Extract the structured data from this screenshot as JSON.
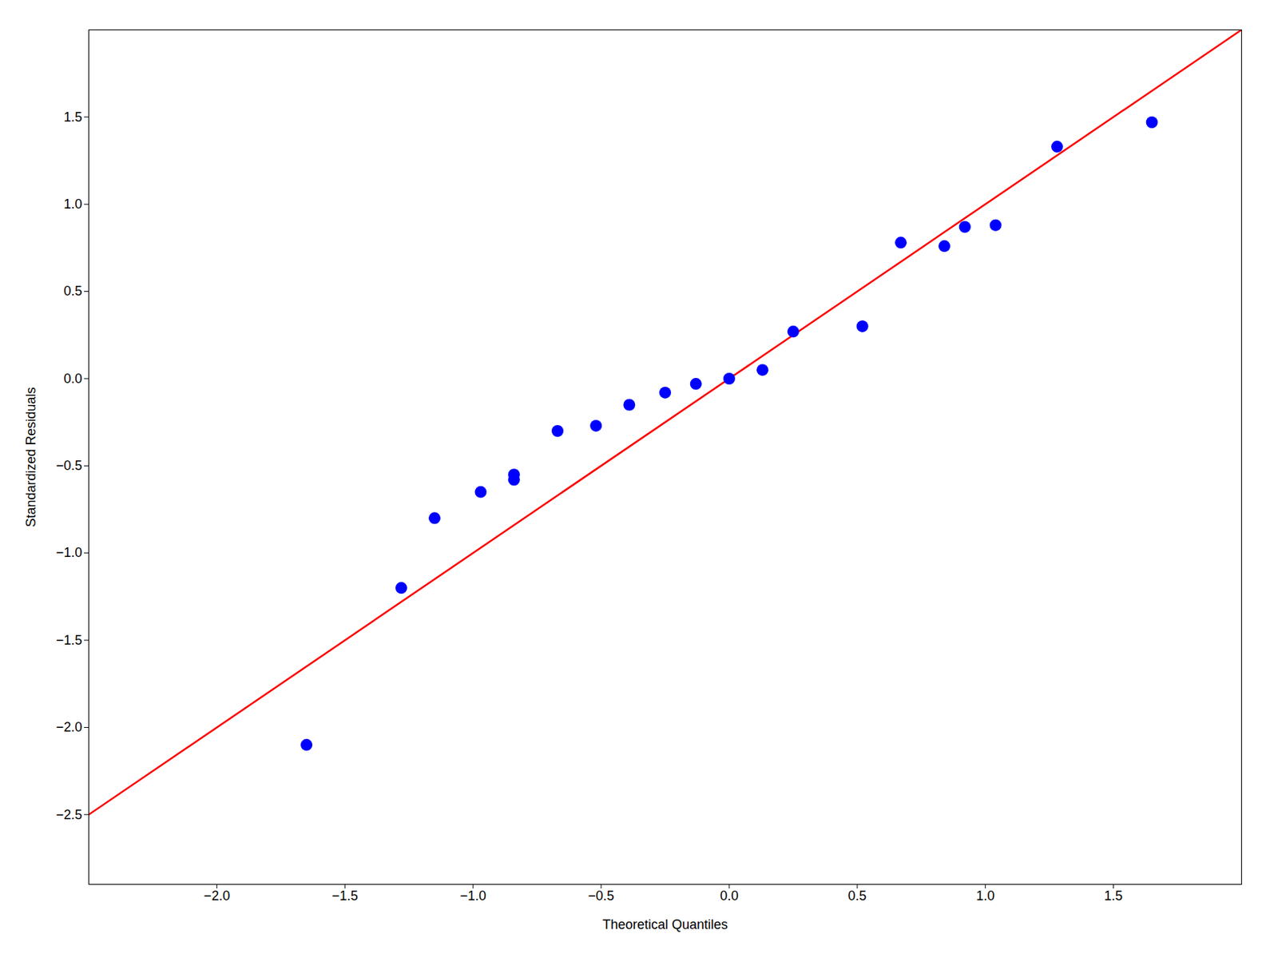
{
  "chart_data": {
    "type": "scatter",
    "xlabel": "Theoretical Quantiles",
    "ylabel": "Standardized Residuals",
    "xlim": [
      -2.5,
      2.0
    ],
    "ylim": [
      -2.9,
      2.0
    ],
    "xticks": [
      {
        "value": -2.0,
        "label": "−2.0"
      },
      -1.5,
      {
        "value": -1.0,
        "label": "−1.0"
      },
      -0.5,
      {
        "value": 0.0,
        "label": "0.0"
      },
      0.5,
      {
        "value": 1.0,
        "label": "1.0"
      },
      1.5
    ],
    "yticks": [
      -2.5,
      {
        "value": -2.0,
        "label": "−2.0"
      },
      -1.5,
      {
        "value": -1.0,
        "label": "−1.0"
      },
      -0.5,
      {
        "value": 0.0,
        "label": "0.0"
      },
      0.5,
      {
        "value": 1.0,
        "label": "1.0"
      },
      1.5
    ],
    "grid": false,
    "series": [
      {
        "type": "line",
        "color": "#FF0000",
        "x": [
          -2.5,
          2.0
        ],
        "values": [
          -2.5,
          2.0
        ]
      },
      {
        "type": "scatter",
        "color": "#0000FF",
        "x": [
          -1.65,
          -1.28,
          -1.15,
          -0.97,
          -0.84,
          -0.84,
          -0.67,
          -0.52,
          -0.39,
          -0.25,
          -0.13,
          0.0,
          0.13,
          0.25,
          0.52,
          0.67,
          0.84,
          0.92,
          1.04,
          1.28,
          1.65
        ],
        "values": [
          -2.1,
          -1.2,
          -0.8,
          -0.65,
          -0.58,
          -0.55,
          -0.3,
          -0.27,
          -0.15,
          -0.08,
          -0.03,
          0.0,
          0.05,
          0.27,
          0.3,
          0.78,
          0.76,
          0.87,
          0.88,
          1.33,
          1.47
        ]
      }
    ]
  }
}
